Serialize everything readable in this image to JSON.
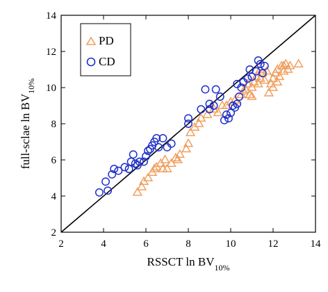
{
  "chart_data": {
    "type": "scatter",
    "title": "",
    "xlabel": "RSSCT ln BV",
    "xlabel_sub": "10%",
    "ylabel": "full-sclae ln BV",
    "ylabel_sub": "10%",
    "xlim": [
      2,
      14
    ],
    "ylim": [
      2,
      14
    ],
    "xticks": [
      "2",
      "4",
      "6",
      "8",
      "10",
      "12",
      "14"
    ],
    "yticks": [
      "2",
      "4",
      "6",
      "8",
      "10",
      "12",
      "14"
    ],
    "grid": false,
    "legend_position": "top-left",
    "reference_line": {
      "from": [
        2,
        2
      ],
      "to": [
        14,
        14
      ],
      "color": "#000000"
    },
    "series": [
      {
        "name": "PD",
        "marker": "triangle",
        "color": "#F0A060",
        "points": [
          [
            5.6,
            4.2
          ],
          [
            5.8,
            4.5
          ],
          [
            5.9,
            4.8
          ],
          [
            6.1,
            5.0
          ],
          [
            6.3,
            5.3
          ],
          [
            6.5,
            5.6
          ],
          [
            6.4,
            5.5
          ],
          [
            6.7,
            5.8
          ],
          [
            6.9,
            6.0
          ],
          [
            6.8,
            5.5
          ],
          [
            7.0,
            5.5
          ],
          [
            7.2,
            5.8
          ],
          [
            7.4,
            6.1
          ],
          [
            7.6,
            6.3
          ],
          [
            7.5,
            6.0
          ],
          [
            7.9,
            6.6
          ],
          [
            8.0,
            6.9
          ],
          [
            8.1,
            7.5
          ],
          [
            8.3,
            7.8
          ],
          [
            8.5,
            8.0
          ],
          [
            8.6,
            8.3
          ],
          [
            8.9,
            8.5
          ],
          [
            9.2,
            8.8
          ],
          [
            9.4,
            8.6
          ],
          [
            9.6,
            9.0
          ],
          [
            9.8,
            9.0
          ],
          [
            10.0,
            9.2
          ],
          [
            10.2,
            9.3
          ],
          [
            10.5,
            9.6
          ],
          [
            10.7,
            9.9
          ],
          [
            10.8,
            10.2
          ],
          [
            10.9,
            9.6
          ],
          [
            11.0,
            10.0
          ],
          [
            11.1,
            10.3
          ],
          [
            11.2,
            10.6
          ],
          [
            11.3,
            10.2
          ],
          [
            11.4,
            10.5
          ],
          [
            11.5,
            10.8
          ],
          [
            11.6,
            10.4
          ],
          [
            11.7,
            10.9
          ],
          [
            11.8,
            9.7
          ],
          [
            11.9,
            10.2
          ],
          [
            12.0,
            10.5
          ],
          [
            12.1,
            10.8
          ],
          [
            12.2,
            11.0
          ],
          [
            12.3,
            10.6
          ],
          [
            12.4,
            11.2
          ],
          [
            12.5,
            10.9
          ],
          [
            12.6,
            11.3
          ],
          [
            12.7,
            11.0
          ],
          [
            12.8,
            11.2
          ],
          [
            13.2,
            11.3
          ],
          [
            12.0,
            10.0
          ],
          [
            11.0,
            9.5
          ],
          [
            10.6,
            9.8
          ],
          [
            12.2,
            10.3
          ],
          [
            11.4,
            11.0
          ],
          [
            12.5,
            11.2
          ]
        ]
      },
      {
        "name": "CD",
        "marker": "circle",
        "color": "#1F2FC8",
        "points": [
          [
            3.8,
            4.2
          ],
          [
            4.1,
            4.8
          ],
          [
            4.2,
            4.3
          ],
          [
            4.4,
            5.2
          ],
          [
            4.5,
            5.5
          ],
          [
            4.7,
            5.4
          ],
          [
            5.0,
            5.6
          ],
          [
            5.2,
            5.5
          ],
          [
            5.3,
            5.9
          ],
          [
            5.4,
            6.3
          ],
          [
            5.5,
            5.8
          ],
          [
            5.6,
            5.7
          ],
          [
            5.7,
            5.9
          ],
          [
            5.9,
            5.9
          ],
          [
            6.0,
            6.2
          ],
          [
            6.1,
            6.5
          ],
          [
            6.2,
            6.6
          ],
          [
            6.3,
            6.8
          ],
          [
            6.4,
            7.0
          ],
          [
            6.5,
            7.2
          ],
          [
            6.6,
            6.7
          ],
          [
            6.8,
            7.2
          ],
          [
            7.0,
            6.7
          ],
          [
            7.2,
            6.9
          ],
          [
            8.0,
            8.0
          ],
          [
            8.0,
            8.3
          ],
          [
            8.6,
            8.8
          ],
          [
            8.8,
            9.9
          ],
          [
            9.0,
            8.8
          ],
          [
            9.0,
            9.1
          ],
          [
            9.2,
            9.0
          ],
          [
            9.3,
            9.9
          ],
          [
            9.5,
            9.5
          ],
          [
            9.7,
            8.2
          ],
          [
            9.8,
            8.5
          ],
          [
            9.9,
            8.3
          ],
          [
            10.0,
            8.6
          ],
          [
            10.1,
            9.0
          ],
          [
            10.2,
            8.9
          ],
          [
            10.3,
            9.1
          ],
          [
            10.4,
            9.5
          ],
          [
            10.5,
            10.0
          ],
          [
            10.6,
            10.3
          ],
          [
            10.8,
            10.5
          ],
          [
            10.9,
            11.0
          ],
          [
            11.0,
            10.6
          ],
          [
            11.2,
            10.9
          ],
          [
            11.4,
            11.3
          ],
          [
            11.5,
            10.8
          ],
          [
            11.6,
            11.2
          ],
          [
            11.3,
            11.5
          ],
          [
            10.3,
            10.2
          ]
        ]
      }
    ]
  }
}
